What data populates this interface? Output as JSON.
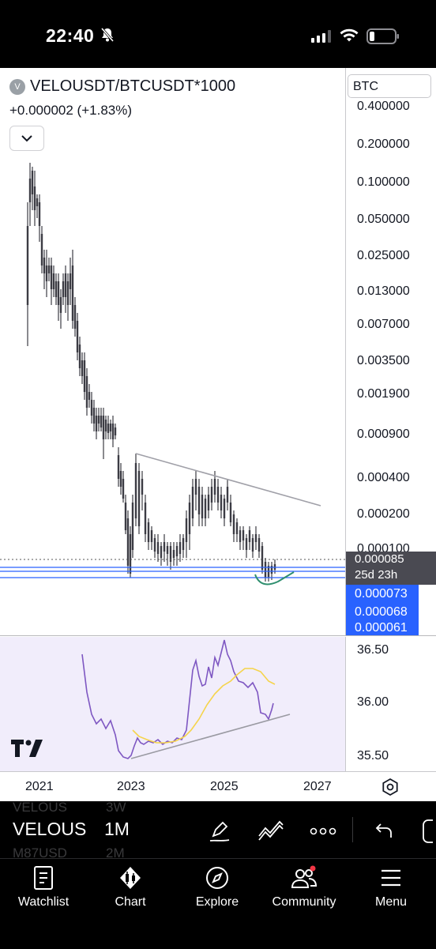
{
  "status_bar": {
    "time": "22:40"
  },
  "chart": {
    "symbol": "VELOUSDT/BTCUSDT*1000",
    "change": "+0.000002 (+1.83%)",
    "currency_button": "BTC",
    "price_axis": [
      "0.400000",
      "0.200000",
      "0.100000",
      "0.050000",
      "0.025000",
      "0.013000",
      "0.007000",
      "0.003500",
      "0.001900",
      "0.000900",
      "0.000400",
      "0.000200"
    ],
    "partial_tick": "0.000100",
    "last_price": "0.000085",
    "countdown": "25d 23h",
    "levels": [
      "0.000073",
      "0.000068",
      "0.000061"
    ],
    "rsi_axis": [
      "36.50",
      "36.00",
      "35.50"
    ],
    "time_axis": [
      "2021",
      "2023",
      "2025",
      "2027"
    ]
  },
  "chart_data": {
    "type": "line",
    "title": "VELOUSDT/BTCUSDT*1000",
    "yscale": "log",
    "x_labels": [
      "2021",
      "2023",
      "2025",
      "2027"
    ],
    "y_ticks": [
      0.4,
      0.2,
      0.1,
      0.05,
      0.025,
      0.013,
      0.007,
      0.0035,
      0.0019,
      0.0009,
      0.0004,
      0.0002
    ],
    "last_value": 8.5e-05,
    "horizontal_levels": [
      7.3e-05,
      6.8e-05,
      6.1e-05
    ],
    "indicator": {
      "y_ticks": [
        36.5,
        36.0,
        35.5
      ]
    },
    "colors": {
      "candle": "#3c3c44",
      "level": "#2962ff",
      "trendline": "#a0a0a8",
      "rsi": "#7e57c2",
      "rsi_ma": "#f5d44b",
      "annotation": "#2f8f6f"
    }
  },
  "toolbar": {
    "ghost_above": "VELOUS",
    "ghost_above_interval": "3W",
    "symbol": "VELOUS",
    "interval": "1M",
    "ghost_below": "M87USD",
    "ghost_below_interval": "2M"
  },
  "tabbar": {
    "items": [
      {
        "label": "Watchlist",
        "icon": "bookmark-icon"
      },
      {
        "label": "Chart",
        "icon": "candles-icon"
      },
      {
        "label": "Explore",
        "icon": "compass-icon"
      },
      {
        "label": "Community",
        "icon": "people-icon"
      },
      {
        "label": "Menu",
        "icon": "hamburger-icon"
      }
    ]
  }
}
